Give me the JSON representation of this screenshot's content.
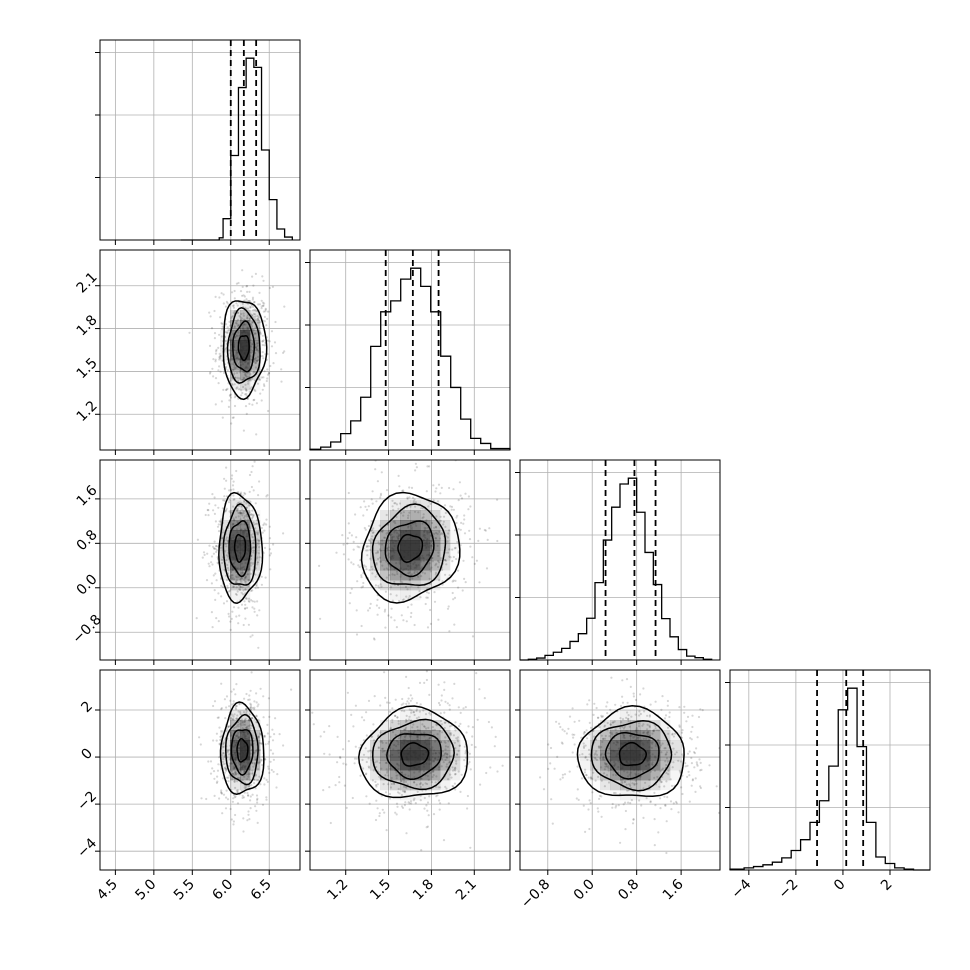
{
  "chart_data": {
    "type": "corner",
    "grid": true,
    "histogram_quantile_lines": "dashed",
    "params": [
      {
        "id": "p1",
        "range": [
          4.3,
          6.9
        ],
        "ticks": [
          "4.5",
          "5.0",
          "5.5",
          "6.0",
          "6.5"
        ],
        "tick_values": [
          4.5,
          5.0,
          5.5,
          6.0,
          6.5
        ],
        "quantiles": [
          6.0,
          6.17,
          6.33
        ],
        "hist": {
          "bins": [
            6.1,
            5.9,
            5.95,
            6.05,
            6.15,
            6.25,
            6.35,
            6.45,
            6.55,
            6.65,
            6.75
          ],
          "edges": [
            5.35,
            5.85,
            5.9,
            6.0,
            6.1,
            6.2,
            6.3,
            6.4,
            6.5,
            6.6,
            6.7,
            6.8
          ],
          "counts": [
            0,
            6,
            58,
            230,
            415,
            495,
            470,
            245,
            110,
            30,
            8
          ]
        }
      },
      {
        "id": "p2",
        "range": [
          0.95,
          2.35
        ],
        "ticks": [
          "1.2",
          "1.5",
          "1.8",
          "2.1"
        ],
        "tick_values": [
          1.2,
          1.5,
          1.8,
          2.1
        ],
        "quantiles": [
          1.48,
          1.67,
          1.85
        ],
        "hist": {
          "edges": [
            0.95,
            1.025,
            1.095,
            1.165,
            1.235,
            1.305,
            1.375,
            1.445,
            1.515,
            1.585,
            1.655,
            1.725,
            1.795,
            1.865,
            1.935,
            2.005,
            2.075,
            2.145,
            2.215,
            2.35
          ],
          "counts": [
            2,
            8,
            22,
            45,
            80,
            145,
            285,
            380,
            410,
            470,
            500,
            450,
            380,
            258,
            172,
            85,
            32,
            18,
            4
          ]
        }
      },
      {
        "id": "p3",
        "range": [
          -1.3,
          2.3
        ],
        "ticks": [
          "−0.8",
          "0.0",
          "0.8",
          "1.6"
        ],
        "tick_values": [
          -0.8,
          0.0,
          0.8,
          1.6
        ],
        "quantiles": [
          0.24,
          0.76,
          1.14
        ],
        "hist": {
          "edges": [
            -1.3,
            -1.15,
            -1.0,
            -0.85,
            -0.7,
            -0.55,
            -0.4,
            -0.25,
            -0.1,
            0.05,
            0.2,
            0.35,
            0.5,
            0.65,
            0.8,
            0.95,
            1.1,
            1.25,
            1.4,
            1.55,
            1.7,
            1.85,
            2.0,
            2.15
          ],
          "counts": [
            0,
            2,
            5,
            12,
            20,
            30,
            48,
            68,
            108,
            200,
            310,
            395,
            455,
            470,
            382,
            278,
            195,
            107,
            60,
            27,
            10,
            6,
            2
          ]
        }
      },
      {
        "id": "p4",
        "range": [
          -4.8,
          3.7
        ],
        "ticks": [
          "−4",
          "−2",
          "0",
          "2"
        ],
        "tick_values": [
          -4,
          -2,
          0,
          2
        ],
        "quantiles": [
          -1.1,
          0.14,
          0.86
        ],
        "hist": {
          "edges": [
            -4.8,
            -4.2,
            -3.8,
            -3.4,
            -3.0,
            -2.6,
            -2.2,
            -1.8,
            -1.4,
            -1.0,
            -0.6,
            -0.2,
            0.2,
            0.6,
            1.0,
            1.4,
            1.8,
            2.2,
            2.6,
            3.0,
            3.7
          ],
          "counts": [
            2,
            5,
            8,
            12,
            18,
            28,
            45,
            70,
            110,
            160,
            240,
            370,
            420,
            285,
            110,
            30,
            15,
            5,
            2,
            0
          ]
        }
      }
    ],
    "pairs": [
      {
        "x": "p1",
        "y": "p2",
        "cx": 6.17,
        "cy": 1.67,
        "sx": 0.14,
        "sy": 0.17,
        "rho": 0.0
      },
      {
        "x": "p1",
        "y": "p3",
        "cx": 6.12,
        "cy": 0.72,
        "sx": 0.14,
        "sy": 0.48,
        "rho": 0.0
      },
      {
        "x": "p2",
        "y": "p3",
        "cx": 1.65,
        "cy": 0.72,
        "sx": 0.17,
        "sy": 0.48,
        "rho": 0.1
      },
      {
        "x": "p1",
        "y": "p4",
        "cx": 6.15,
        "cy": 0.28,
        "sx": 0.14,
        "sy": 0.95,
        "rho": 0.0
      },
      {
        "x": "p2",
        "y": "p4",
        "cx": 1.68,
        "cy": 0.1,
        "sx": 0.19,
        "sy": 0.95,
        "rho": 0.05
      },
      {
        "x": "p3",
        "y": "p4",
        "cx": 0.72,
        "cy": 0.1,
        "sx": 0.48,
        "sy": 0.95,
        "rho": 0.0
      }
    ]
  },
  "colors": {
    "line": "#000000",
    "grid": "#b0b0b0",
    "scatter": "#000000",
    "hist2d_dark": "#2a2a2a"
  }
}
